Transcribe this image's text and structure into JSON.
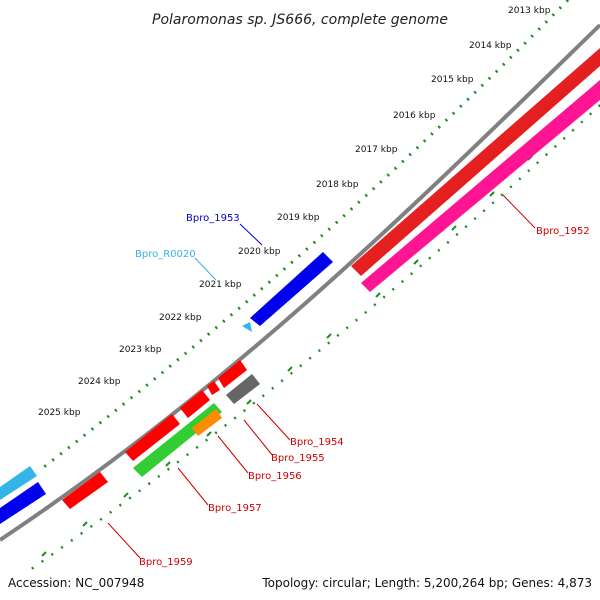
{
  "title": "Polaromonas sp. JS666, complete genome",
  "footer": {
    "accession": "Accession: NC_007948",
    "summary": "Topology: circular; Length: 5,200,264 bp; Genes: 4,873"
  },
  "ticks": [
    "2013 kbp",
    "2014 kbp",
    "2015 kbp",
    "2016 kbp",
    "2017 kbp",
    "2018 kbp",
    "2019 kbp",
    "2020 kbp",
    "2021 kbp",
    "2022 kbp",
    "2023 kbp",
    "2024 kbp",
    "2025 kbp"
  ],
  "genes": {
    "bpro_1952": {
      "label": "Bpro_1952",
      "color": "#cc0000"
    },
    "bpro_1953": {
      "label": "Bpro_1953",
      "color": "#0000cc"
    },
    "bpro_r0020": {
      "label": "Bpro_R0020",
      "color": "#33b5e5"
    },
    "bpro_1954": {
      "label": "Bpro_1954",
      "color": "#cc0000"
    },
    "bpro_1955": {
      "label": "Bpro_1955",
      "color": "#cc0000"
    },
    "bpro_1956": {
      "label": "Bpro_1956",
      "color": "#cc0000"
    },
    "bpro_1957": {
      "label": "Bpro_1957",
      "color": "#cc0000"
    },
    "bpro_1959": {
      "label": "Bpro_1959",
      "color": "#cc0000"
    }
  },
  "colors": {
    "backbone": "#808080",
    "tick_dots": "#228b22",
    "cds": "#ff0000",
    "trna": "#33b5e5",
    "pink_feature": "#ff1493",
    "green_feature": "#33cc33",
    "orange_feature": "#ff8c00",
    "gray_feature": "#666666",
    "blue_feature": "#0000ee"
  }
}
